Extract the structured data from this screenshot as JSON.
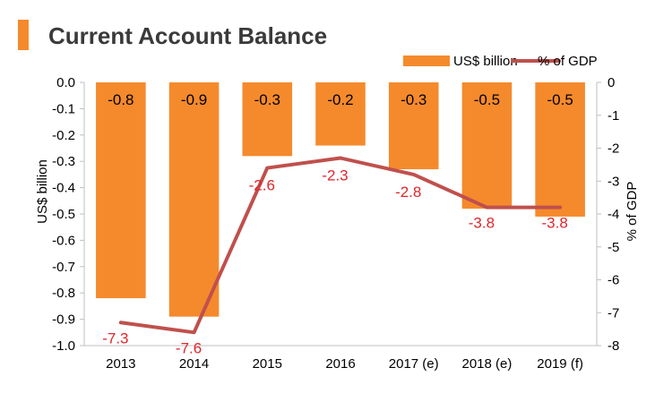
{
  "title": "Current Account Balance",
  "colors": {
    "accent": "#f58a2c",
    "bar": "#f58a2c",
    "line": "#c0504d",
    "line_label": "#e0262b",
    "axis": "#bfbfbf"
  },
  "chart_data": {
    "type": "bar",
    "categories": [
      "2013",
      "2014",
      "2015",
      "2016",
      "2017 (e)",
      "2018 (e)",
      "2019 (f)"
    ],
    "series": [
      {
        "name": "US$ billion",
        "type": "bar",
        "axis": "left",
        "values": [
          -0.82,
          -0.89,
          -0.28,
          -0.24,
          -0.33,
          -0.48,
          -0.51
        ],
        "labels": [
          "-0.8",
          "-0.9",
          "-0.3",
          "-0.2",
          "-0.3",
          "-0.5",
          "-0.5"
        ]
      },
      {
        "name": "% of GDP",
        "type": "line",
        "axis": "right",
        "values": [
          -7.3,
          -7.6,
          -2.6,
          -2.3,
          -2.8,
          -3.8,
          -3.8
        ],
        "labels": [
          "-7.3",
          "-7.6",
          "-2.6",
          "-2.3",
          "-2.8",
          "-3.8",
          "-3.8"
        ]
      }
    ],
    "ylabel": "US$ billion",
    "y2label": "% of GDP",
    "ylim": [
      -1.0,
      0.0
    ],
    "y2lim": [
      -8,
      0
    ],
    "yticks": [
      "0.0",
      "-0.1",
      "-0.2",
      "-0.3",
      "-0.4",
      "-0.5",
      "-0.6",
      "-0.7",
      "-0.8",
      "-0.9",
      "-1.0"
    ],
    "y2ticks": [
      "0",
      "-1",
      "-2",
      "-3",
      "-4",
      "-5",
      "-6",
      "-7",
      "-8"
    ],
    "grid": false,
    "legend": "top-right"
  }
}
